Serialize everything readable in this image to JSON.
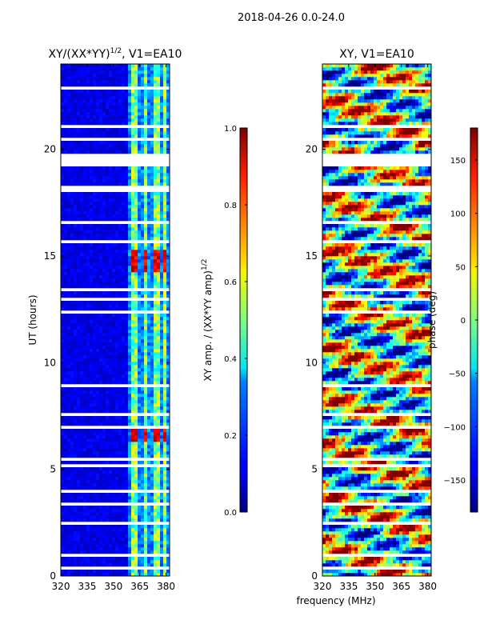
{
  "suptitle": "2018-04-26 0.0-24.0",
  "colors": {
    "map_low": "#00007f",
    "map_high": "#7f0000",
    "gap": "#ffffff",
    "axis": "#000000"
  },
  "chart_data": [
    {
      "type": "heatmap",
      "title": "XY/(XX*YY)^{1/2}, V1=EA10",
      "title_main": "XY/(XX*YY)",
      "title_sup": "1/2",
      "title_tail": ", V1=EA10",
      "xlabel": "",
      "ylabel": "UT (hours)",
      "xlim": [
        320,
        382
      ],
      "ylim": [
        0,
        24
      ],
      "xticks": [
        320,
        335,
        350,
        365,
        380
      ],
      "xtick_labels": [
        "320",
        "335",
        "350",
        "365",
        "380"
      ],
      "yticks": [
        0,
        5,
        10,
        15,
        20
      ],
      "ytick_labels": [
        "0",
        "5",
        "10",
        "15",
        "20"
      ],
      "colormap": "jet",
      "colorbar": {
        "label": "XY amp. / (XX*YY amp)^{1/2}",
        "label_main": "XY amp. / (XX*YY amp)",
        "label_sup": "1/2",
        "range": [
          0.0,
          1.0
        ],
        "ticks": [
          0.0,
          0.2,
          0.4,
          0.6,
          0.8,
          1.0
        ],
        "tick_labels": [
          "0.0",
          "0.2",
          "0.4",
          "0.6",
          "0.8",
          "1.0"
        ]
      },
      "bright_channels_mhz": [
        [
          360,
          363
        ],
        [
          367,
          370
        ],
        [
          373,
          376
        ],
        [
          379,
          381
        ]
      ],
      "high_value_ut_ranges": [
        [
          14.2,
          15.3
        ],
        [
          6.3,
          6.9
        ]
      ]
    },
    {
      "type": "heatmap",
      "title": "XY, V1=EA10",
      "xlabel": "frequency (MHz)",
      "ylabel": "",
      "xlim": [
        320,
        382
      ],
      "ylim": [
        0,
        24
      ],
      "xticks": [
        320,
        335,
        350,
        365,
        380
      ],
      "xtick_labels": [
        "320",
        "335",
        "350",
        "365",
        "380"
      ],
      "yticks": [
        0,
        5,
        10,
        15,
        20
      ],
      "ytick_labels": [
        "0",
        "5",
        "10",
        "15",
        "20"
      ],
      "colormap": "jet",
      "colorbar": {
        "label": "phase (deg)",
        "range": [
          -180,
          180
        ],
        "ticks": [
          -150,
          -100,
          -50,
          0,
          50,
          100,
          150
        ],
        "tick_labels": [
          "−150",
          "−100",
          "−50",
          "0",
          "50",
          "100",
          "150"
        ]
      }
    }
  ],
  "flagged_ut_ranges": [
    [
      0.35,
      0.45
    ],
    [
      0.85,
      1.05
    ],
    [
      1.65,
      1.72
    ],
    [
      2.45,
      2.5
    ],
    [
      3.35,
      3.4
    ],
    [
      3.95,
      4.0
    ],
    [
      4.45,
      4.55
    ],
    [
      5.15,
      5.2
    ],
    [
      5.45,
      5.52
    ],
    [
      5.95,
      6.0
    ],
    [
      6.45,
      6.5
    ],
    [
      6.95,
      7.05
    ],
    [
      7.55,
      7.6
    ],
    [
      7.95,
      8.0
    ],
    [
      8.35,
      8.42
    ],
    [
      8.9,
      8.97
    ],
    [
      9.45,
      9.5
    ],
    [
      10.3,
      10.35
    ],
    [
      11.35,
      11.45
    ],
    [
      11.85,
      11.9
    ],
    [
      12.35,
      12.42
    ],
    [
      12.95,
      13.0
    ],
    [
      13.35,
      13.45
    ],
    [
      14.25,
      14.3
    ],
    [
      15.3,
      15.35
    ],
    [
      15.65,
      15.72
    ],
    [
      16.2,
      16.25
    ],
    [
      16.55,
      16.6
    ],
    [
      17.2,
      17.25
    ],
    [
      17.55,
      17.62
    ],
    [
      18.05,
      18.35
    ],
    [
      19.15,
      19.75
    ],
    [
      20.45,
      20.5
    ],
    [
      21.05,
      21.12
    ],
    [
      21.55,
      21.6
    ],
    [
      22.05,
      22.1
    ],
    [
      22.35,
      22.4
    ],
    [
      22.85,
      22.9
    ],
    [
      23.25,
      23.3
    ]
  ]
}
